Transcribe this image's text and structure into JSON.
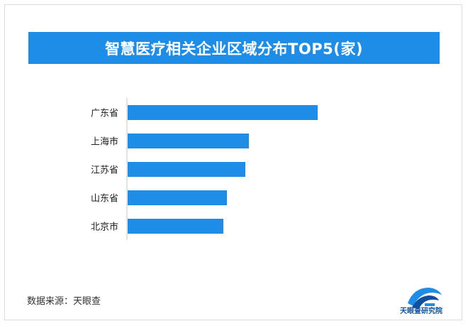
{
  "chart_data": {
    "type": "bar",
    "orientation": "horizontal",
    "title": "智慧医疗相关企业区域分布TOP5(家)",
    "categories": [
      "广东省",
      "上海市",
      "江苏省",
      "山东省",
      "北京市"
    ],
    "values": [
      268,
      171,
      166,
      140,
      135
    ],
    "xlim": [
      0,
      300
    ],
    "grid": false,
    "colors": {
      "bar": "#1d8de8",
      "banner": "#1d8de8"
    }
  },
  "footer": {
    "source": "数据来源：天眼查",
    "logo_text": "天眼查研究院"
  }
}
